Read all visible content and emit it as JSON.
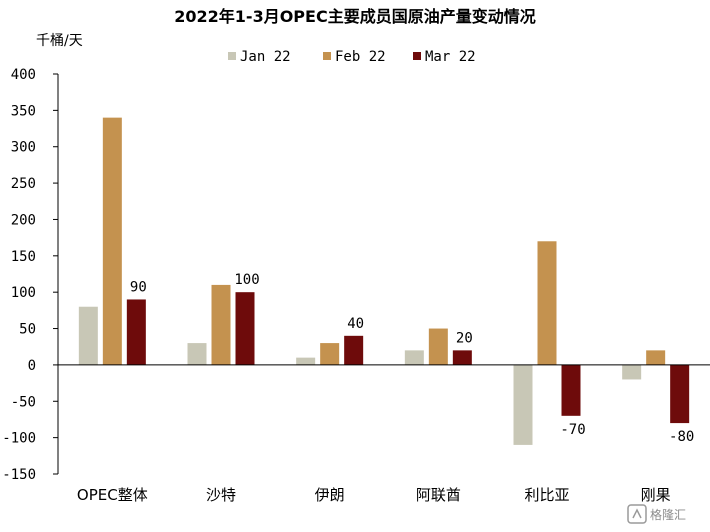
{
  "chart_data": {
    "type": "bar",
    "title": "2022年1-3月OPEC主要成员国原油产量变动情况",
    "ylabel": "千桶/天",
    "ylim": [
      -150,
      400
    ],
    "yticks": [
      400,
      350,
      300,
      250,
      200,
      150,
      100,
      50,
      0,
      -50,
      -100,
      -150
    ],
    "categories": [
      "OPEC整体",
      "沙特",
      "伊朗",
      "阿联酋",
      "利比亚",
      "刚果"
    ],
    "series": [
      {
        "name": "Jan 22",
        "color": "#c8c7b6",
        "values": [
          80,
          30,
          10,
          20,
          -110,
          -20
        ]
      },
      {
        "name": "Feb 22",
        "color": "#c4924f",
        "values": [
          340,
          110,
          30,
          50,
          170,
          20
        ]
      },
      {
        "name": "Mar 22",
        "color": "#6e0b0b",
        "values": [
          90,
          100,
          40,
          20,
          -70,
          -80
        ],
        "data_labels": [
          "90",
          "100",
          "40",
          "20",
          "-70",
          "-80"
        ]
      }
    ],
    "legend_position": "top-center",
    "grid": false
  },
  "watermark": {
    "text": "格隆汇"
  }
}
